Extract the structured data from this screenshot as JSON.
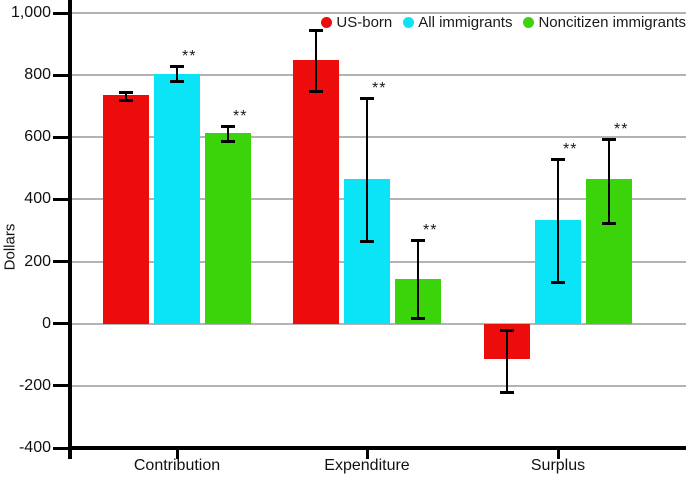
{
  "y_axis": {
    "label": "Dollars",
    "ticks": [
      {
        "label": "1,000",
        "value": 1000
      },
      {
        "label": "800",
        "value": 800
      },
      {
        "label": "600",
        "value": 600
      },
      {
        "label": "400",
        "value": 400
      },
      {
        "label": "200",
        "value": 200
      },
      {
        "label": "0",
        "value": 0
      },
      {
        "label": "-200",
        "value": -200
      },
      {
        "label": "-400",
        "value": -400
      }
    ]
  },
  "x_axis": {
    "categories": [
      "Contribution",
      "Expenditure",
      "Surplus"
    ]
  },
  "legend": {
    "items": [
      {
        "label": "US-born",
        "color": "#ec0c0c"
      },
      {
        "label": "All immigrants",
        "color": "#0ae4f6"
      },
      {
        "label": "Noncitizen immigrants",
        "color": "#3bd40b"
      }
    ]
  },
  "chart_data": {
    "type": "bar",
    "title": "",
    "xlabel": "",
    "ylabel": "Dollars",
    "ylim": [
      -400,
      1000
    ],
    "grid": true,
    "legend_position": "top-right",
    "categories": [
      "Contribution",
      "Expenditure",
      "Surplus"
    ],
    "series": [
      {
        "name": "US-born",
        "color": "#ec0c0c",
        "values": [
          735,
          850,
          -115
        ],
        "error_low": [
          717,
          745,
          -222
        ],
        "error_high": [
          746,
          945,
          -21
        ],
        "significance": [
          "",
          "",
          ""
        ]
      },
      {
        "name": "All immigrants",
        "color": "#0ae4f6",
        "values": [
          805,
          465,
          335
        ],
        "error_low": [
          778,
          262,
          130
        ],
        "error_high": [
          828,
          725,
          530
        ],
        "significance": [
          "**",
          "**",
          "**"
        ]
      },
      {
        "name": "Noncitizen immigrants",
        "color": "#3bd40b",
        "values": [
          613,
          145,
          465
        ],
        "error_low": [
          585,
          15,
          322
        ],
        "error_high": [
          635,
          268,
          595
        ],
        "significance": [
          "**",
          "**",
          "**"
        ]
      }
    ]
  }
}
